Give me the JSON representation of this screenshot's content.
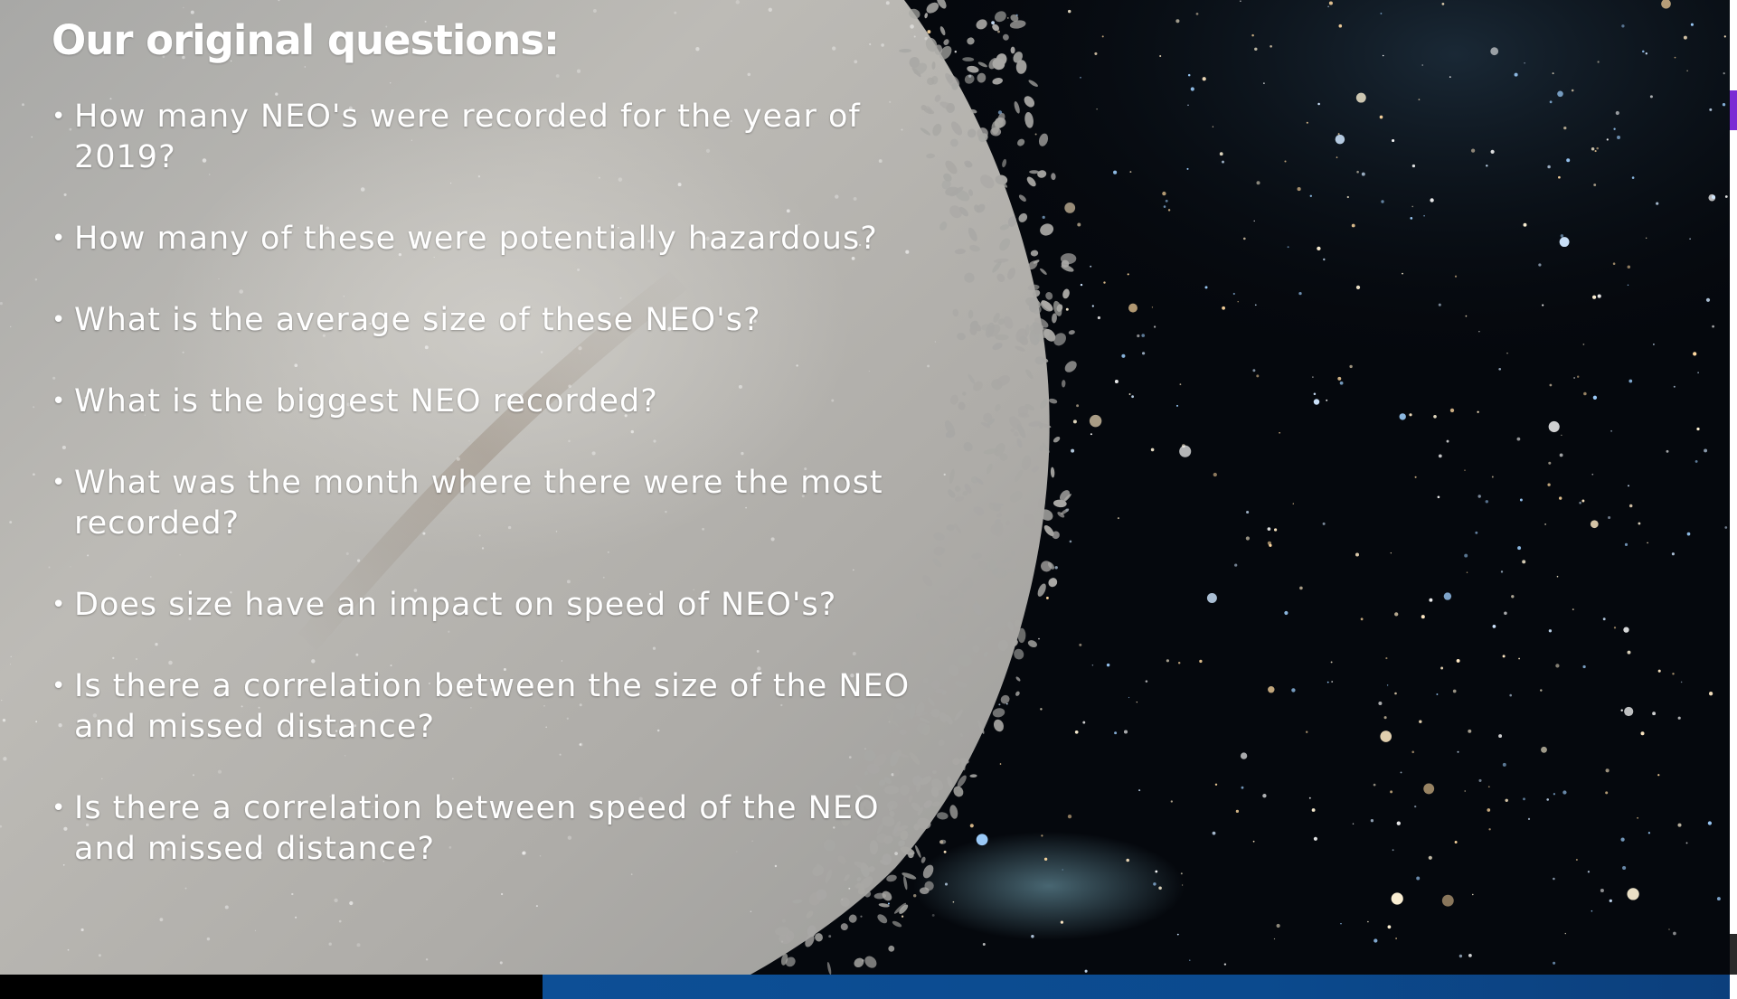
{
  "slide": {
    "title": "Our original questions:",
    "bullet_glyph": "•",
    "questions": [
      "How many NEO's were recorded for the year of 2019?",
      "How many of these were potentially hazardous?",
      "What is the average size of these NEO's?",
      "What is the biggest NEO recorded?",
      "What was the month where there were the most recorded?",
      "Does size have an impact on speed of NEO's?",
      "Is there a correlation between the size of the NEO and missed distance?",
      "Is there a correlation between speed of the NEO and missed distance?"
    ]
  },
  "colors": {
    "space_background": "#05080d",
    "galaxy_overlay": "#b9b7b3",
    "text": "#ffffff",
    "bottom_bar": "#0d4f96",
    "edge_marker": "#7a2bd4"
  }
}
